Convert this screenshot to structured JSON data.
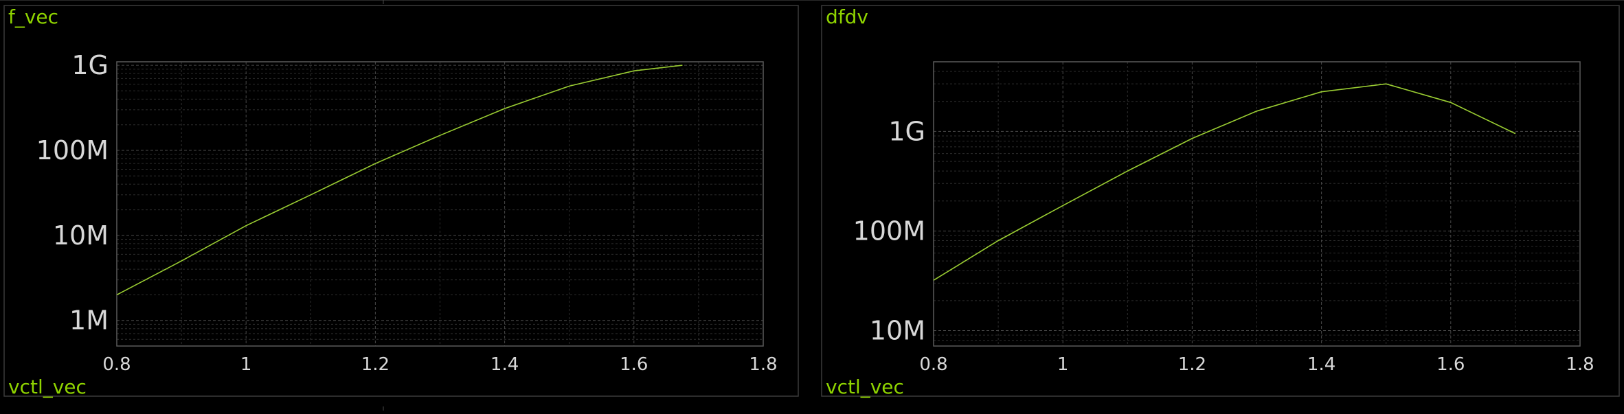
{
  "colors": {
    "background": "#000000",
    "panel_border": "#3a3a3a",
    "plot_frame": "#5a5a5a",
    "grid_major": "#4a4a4a",
    "grid_minor": "#2e2e2e",
    "trace": "#9acd32",
    "label": "#8fd400",
    "tick_text": "#d8d8d8"
  },
  "chart_data": [
    {
      "type": "line",
      "title": "f_vec",
      "xlabel": "vctl_vec",
      "ylabel": "",
      "y_scale": "log",
      "grid": true,
      "xlim": [
        0.8,
        1.8
      ],
      "ylim": [
        500000,
        1100000000
      ],
      "x_ticks": [
        0.8,
        1,
        1.2,
        1.4,
        1.6,
        1.8
      ],
      "x_tick_labels": [
        "0.8",
        "1",
        "1.2",
        "1.4",
        "1.6",
        "1.8"
      ],
      "y_ticks": [
        1000000,
        10000000,
        100000000,
        1000000000
      ],
      "y_tick_labels": [
        "1M",
        "10M",
        "100M",
        "1G"
      ],
      "series": [
        {
          "x": [
            0.8,
            0.9,
            1.0,
            1.1,
            1.2,
            1.3,
            1.4,
            1.5,
            1.6,
            1.675
          ],
          "y": [
            2000000,
            5000000,
            13000000,
            30000000,
            70000000,
            150000000,
            310000000,
            570000000,
            860000000,
            1000000000
          ]
        }
      ]
    },
    {
      "type": "line",
      "title": "dfdv",
      "xlabel": "vctl_vec",
      "ylabel": "",
      "y_scale": "log",
      "grid": true,
      "xlim": [
        0.8,
        1.8
      ],
      "ylim": [
        7000000,
        5000000000
      ],
      "x_ticks": [
        0.8,
        1,
        1.2,
        1.4,
        1.6,
        1.8
      ],
      "x_tick_labels": [
        "0.8",
        "1",
        "1.2",
        "1.4",
        "1.6",
        "1.8"
      ],
      "y_ticks": [
        10000000,
        100000000,
        1000000000
      ],
      "y_tick_labels": [
        "10M",
        "100M",
        "1G"
      ],
      "series": [
        {
          "x": [
            0.8,
            0.9,
            1.0,
            1.1,
            1.2,
            1.3,
            1.4,
            1.5,
            1.6,
            1.7
          ],
          "y": [
            32000000,
            80000000,
            180000000,
            400000000,
            850000000,
            1600000000,
            2500000000,
            3000000000,
            1950000000,
            950000000
          ]
        }
      ]
    }
  ]
}
